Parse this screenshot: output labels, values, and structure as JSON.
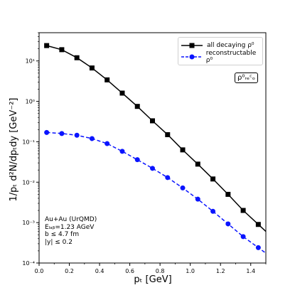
{
  "chart_data": {
    "type": "line",
    "xlabel": "pₜ [GeV]",
    "ylabel": "1/pₜ d²N/dpₜdy [GeV⁻²]",
    "xlim": [
      0.0,
      1.5
    ],
    "ylim": [
      0.0001,
      50
    ],
    "yscale": "log",
    "x_ticks": [
      "0.0",
      "0.2",
      "0.4",
      "0.6",
      "0.8",
      "1.0",
      "1.2",
      "1.4"
    ],
    "y_ticks": [
      "10⁻⁴",
      "10⁻³",
      "10⁻²",
      "10⁻¹",
      "10⁰",
      "10¹"
    ],
    "grid": false,
    "legend_position": "top-right",
    "series": [
      {
        "name": "all decaying ρ⁰",
        "color": "#000000",
        "marker": "square",
        "style": "solid",
        "x": [
          0.05,
          0.15,
          0.25,
          0.35,
          0.45,
          0.55,
          0.65,
          0.75,
          0.85,
          0.95,
          1.05,
          1.15,
          1.25,
          1.35,
          1.45
        ],
        "y": [
          24,
          19,
          12,
          6.7,
          3.4,
          1.6,
          0.75,
          0.33,
          0.15,
          0.063,
          0.028,
          0.012,
          0.005,
          0.002,
          0.0009
        ]
      },
      {
        "name": "reconstructable ρ⁰",
        "color": "#0a14ff",
        "marker": "circle",
        "style": "dashed",
        "x": [
          0.05,
          0.15,
          0.25,
          0.35,
          0.45,
          0.55,
          0.65,
          0.75,
          0.85,
          0.95,
          1.05,
          1.15,
          1.25,
          1.35,
          1.45
        ],
        "y": [
          0.17,
          0.16,
          0.145,
          0.12,
          0.09,
          0.058,
          0.036,
          0.022,
          0.013,
          0.0072,
          0.0038,
          0.0019,
          0.00093,
          0.00045,
          0.00024
        ]
      }
    ],
    "annotations": [
      "Au+Au (UrQMD)",
      "Eₗₐᵦ=1.23 AGeV",
      "b ≤ 4.7 fm",
      "|y| ≤ 0.2"
    ],
    "badge": "ρ⁰ᵣₑᶜₒ"
  }
}
